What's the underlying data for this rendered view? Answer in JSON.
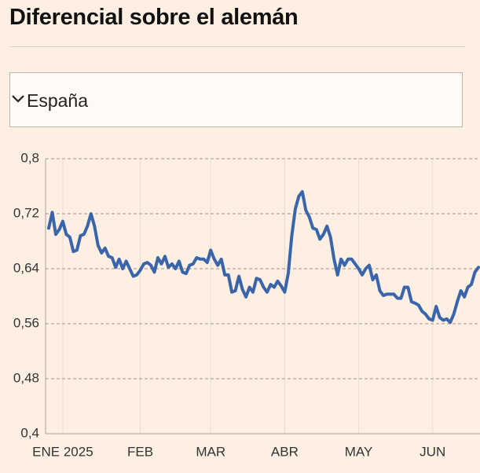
{
  "dropdown": {
    "selected": "España"
  },
  "chart_data": {
    "type": "line",
    "title": "Diferencial sobre el alemán",
    "color": "#3a65ab",
    "categories": [
      null,
      null,
      null,
      null,
      "ENE 2025",
      null,
      null,
      null,
      null,
      null,
      null,
      null,
      null,
      null,
      null,
      null,
      null,
      null,
      null,
      null,
      null,
      null,
      null,
      null,
      null,
      null,
      "FEB",
      null,
      null,
      null,
      null,
      null,
      null,
      null,
      null,
      null,
      null,
      null,
      null,
      null,
      null,
      null,
      null,
      null,
      null,
      null,
      "MAR",
      null,
      null,
      null,
      null,
      null,
      null,
      null,
      null,
      null,
      null,
      null,
      null,
      null,
      null,
      null,
      null,
      null,
      null,
      null,
      null,
      "ABR",
      null,
      null,
      null,
      null,
      null,
      null,
      null,
      null,
      null,
      null,
      null,
      null,
      null,
      null,
      null,
      null,
      null,
      null,
      null,
      null,
      "MAY",
      null,
      null,
      null,
      null,
      null,
      null,
      null,
      null,
      null,
      null,
      null,
      null,
      null,
      null,
      null,
      null,
      null,
      null,
      null,
      null,
      "JUN",
      null,
      null,
      null,
      null,
      null,
      null,
      null,
      null,
      null,
      null,
      null,
      null,
      null
    ],
    "values": [
      0.699,
      0.722,
      0.69,
      0.697,
      0.709,
      0.69,
      0.686,
      0.665,
      0.667,
      0.688,
      0.69,
      0.702,
      0.72,
      0.702,
      0.674,
      0.663,
      0.67,
      0.658,
      0.656,
      0.642,
      0.654,
      0.64,
      0.651,
      0.64,
      0.629,
      0.631,
      0.638,
      0.647,
      0.649,
      0.645,
      0.635,
      0.656,
      0.647,
      0.658,
      0.642,
      0.647,
      0.64,
      0.651,
      0.635,
      0.633,
      0.645,
      0.647,
      0.656,
      0.654,
      0.654,
      0.649,
      0.667,
      0.654,
      0.645,
      0.654,
      0.631,
      0.631,
      0.606,
      0.608,
      0.629,
      0.61,
      0.599,
      0.613,
      0.606,
      0.626,
      0.624,
      0.613,
      0.606,
      0.617,
      0.613,
      0.622,
      0.615,
      0.606,
      0.633,
      0.688,
      0.727,
      0.745,
      0.752,
      0.725,
      0.715,
      0.699,
      0.697,
      0.683,
      0.69,
      0.702,
      0.686,
      0.654,
      0.631,
      0.654,
      0.645,
      0.654,
      0.654,
      0.647,
      0.64,
      0.631,
      0.64,
      0.645,
      0.624,
      0.631,
      0.608,
      0.601,
      0.603,
      0.603,
      0.603,
      0.597,
      0.597,
      0.613,
      0.613,
      0.592,
      0.59,
      0.587,
      0.578,
      0.574,
      0.567,
      0.565,
      0.585,
      0.569,
      0.565,
      0.567,
      0.562,
      0.574,
      0.592,
      0.608,
      0.599,
      0.613,
      0.617,
      0.635,
      0.642
    ],
    "ylim": [
      0.4,
      0.8
    ],
    "yticks": [
      {
        "value": 0.4,
        "label": "0,4"
      },
      {
        "value": 0.48,
        "label": "0,48"
      },
      {
        "value": 0.56,
        "label": "0,56"
      },
      {
        "value": 0.64,
        "label": "0,64"
      },
      {
        "value": 0.72,
        "label": "0,72"
      },
      {
        "value": 0.8,
        "label": "0,8"
      }
    ],
    "grid": true
  }
}
